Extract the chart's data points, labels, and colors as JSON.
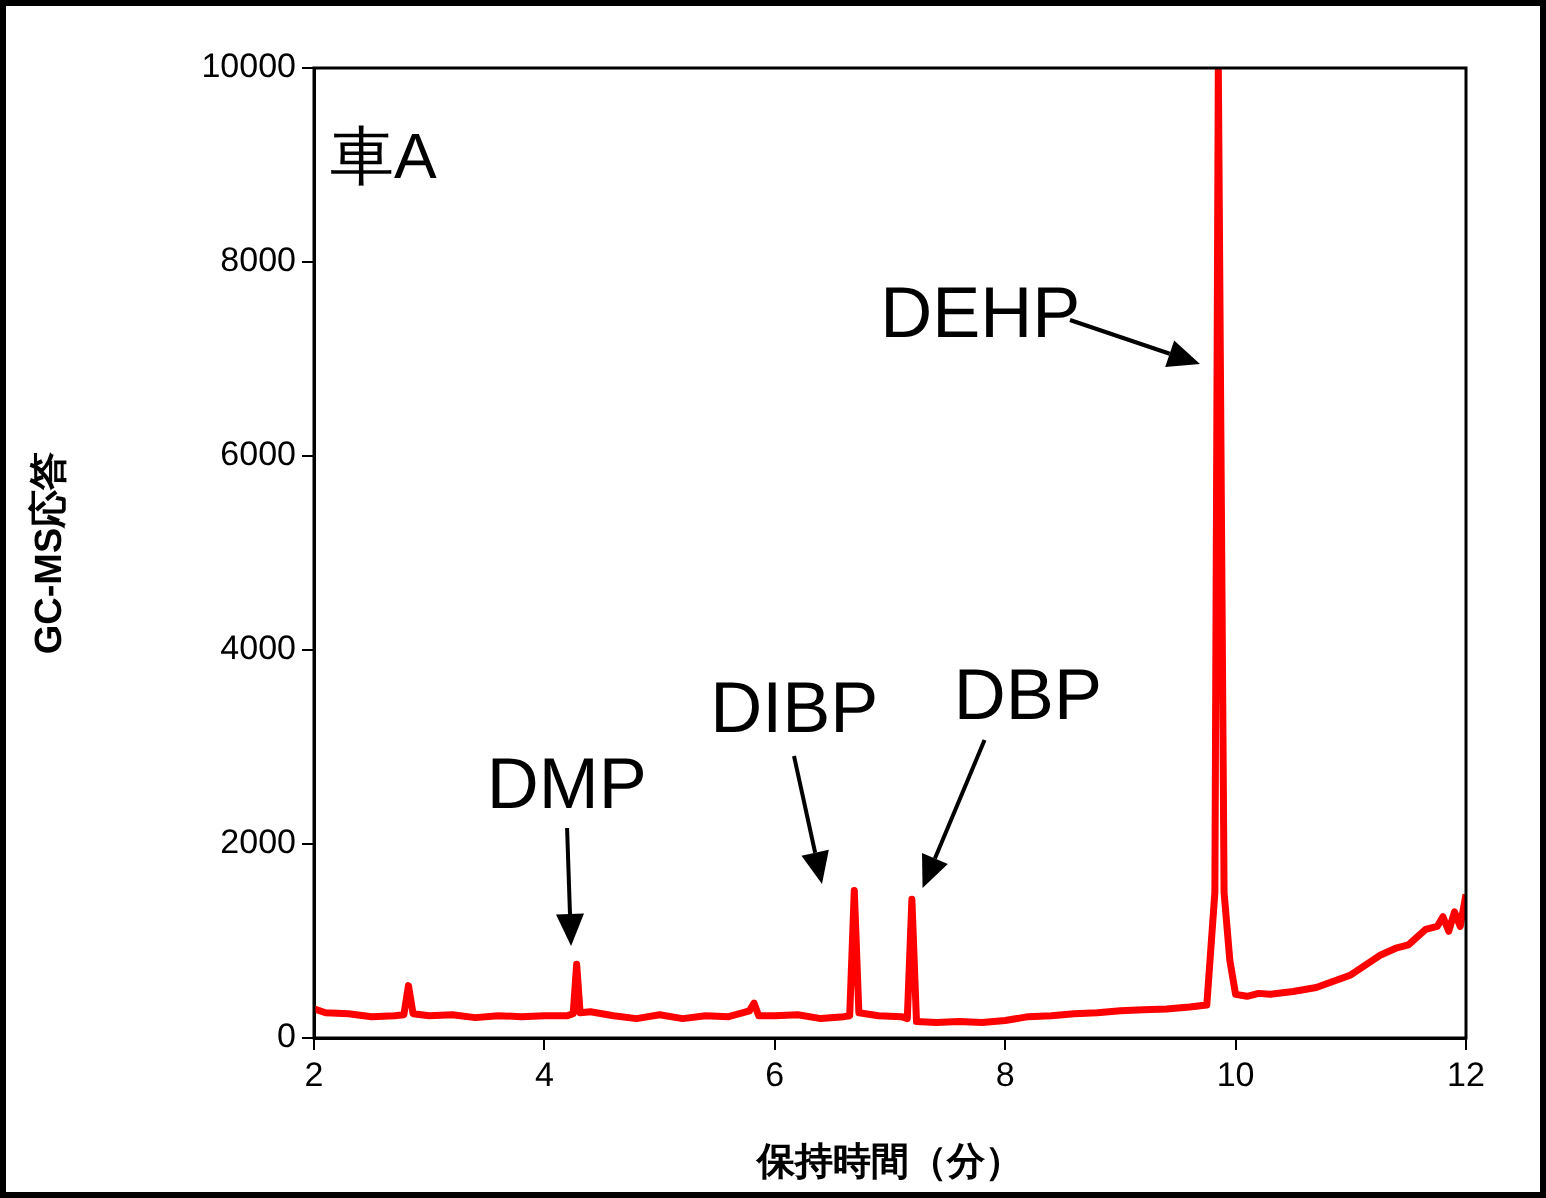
{
  "chart_data": {
    "type": "line",
    "xlabel": "保持時間（分）",
    "ylabel": "GC-MS応答",
    "xlim": [
      2,
      12
    ],
    "xticks": [
      2,
      4,
      6,
      8,
      10,
      12
    ],
    "ylim": [
      0,
      10000
    ],
    "yticks": [
      0,
      2000,
      4000,
      6000,
      8000,
      10000
    ],
    "marker": "none",
    "line_style": "solid",
    "annotations": [
      "車A",
      {
        "text": "DMP",
        "x": 4.28,
        "y": 760
      },
      {
        "text": "DIBP",
        "x": 6.69,
        "y": 1520
      },
      {
        "text": "DBP",
        "x": 7.19,
        "y": 1430
      },
      {
        "text": "DEHP",
        "x": 9.85,
        "y": 7000
      }
    ],
    "series": [
      {
        "color": "#ff0000",
        "x": [
          2.0,
          2.1,
          2.3,
          2.5,
          2.7,
          2.78,
          2.82,
          2.86,
          3.0,
          3.2,
          3.4,
          3.6,
          3.8,
          4.0,
          4.2,
          4.25,
          4.28,
          4.31,
          4.4,
          4.6,
          4.8,
          5.0,
          5.2,
          5.4,
          5.6,
          5.78,
          5.82,
          5.86,
          6.0,
          6.2,
          6.4,
          6.6,
          6.65,
          6.69,
          6.73,
          6.9,
          7.1,
          7.15,
          7.19,
          7.23,
          7.4,
          7.6,
          7.8,
          8.0,
          8.2,
          8.4,
          8.6,
          8.8,
          9.0,
          9.2,
          9.4,
          9.6,
          9.75,
          9.82,
          9.85,
          9.9,
          9.95,
          10.0,
          10.1,
          10.2,
          10.3,
          10.5,
          10.7,
          11.0,
          11.25,
          11.4,
          11.5,
          11.65,
          11.75,
          11.8,
          11.85,
          11.9,
          11.95,
          12.0
        ],
        "values": [
          300,
          260,
          250,
          220,
          230,
          240,
          540,
          250,
          230,
          240,
          210,
          230,
          220,
          230,
          230,
          250,
          760,
          260,
          270,
          230,
          200,
          240,
          200,
          230,
          220,
          280,
          360,
          230,
          230,
          240,
          200,
          220,
          230,
          1520,
          260,
          230,
          220,
          200,
          1430,
          170,
          160,
          170,
          160,
          180,
          220,
          230,
          250,
          260,
          280,
          290,
          300,
          320,
          340,
          1500,
          10000,
          1500,
          800,
          450,
          430,
          460,
          450,
          480,
          520,
          650,
          850,
          930,
          960,
          1120,
          1150,
          1250,
          1100,
          1300,
          1150,
          1480
        ]
      }
    ]
  }
}
